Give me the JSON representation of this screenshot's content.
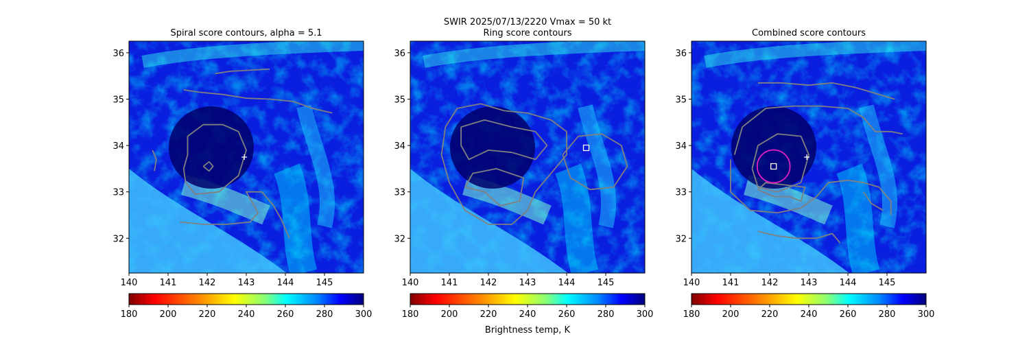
{
  "figure": {
    "suptitle_line1": "SWIR  2025/07/13/2220    Vmax = 50 kt",
    "colorbar_label": "Brightness temp, K",
    "colormap": [
      "#7f0000",
      "#ff0000",
      "#ff8800",
      "#ffff00",
      "#88ff77",
      "#00ffff",
      "#0088ff",
      "#0000ff",
      "#00007f"
    ]
  },
  "chart_data": [
    {
      "type": "heatmap",
      "title": "Spiral score contours, alpha =  5.1",
      "xlim": [
        140,
        146
      ],
      "ylim": [
        31.25,
        36.25
      ],
      "xticks": [
        "140",
        "141",
        "142",
        "143",
        "144",
        "145"
      ],
      "yticks": [
        "32",
        "33",
        "34",
        "35",
        "36"
      ],
      "colorbar": {
        "range": [
          180,
          300
        ],
        "ticks": [
          "180",
          "200",
          "220",
          "240",
          "260",
          "280",
          "300"
        ]
      },
      "markers": [
        {
          "symbol": "plus",
          "color": "#ffffff",
          "x": 142.95,
          "y": 33.75
        }
      ],
      "contours": [
        {
          "color": "#808080",
          "points": [
            [
              142.2,
              35.55
            ],
            [
              142.6,
              35.6
            ],
            [
              143.0,
              35.62
            ],
            [
              143.6,
              35.65
            ]
          ]
        },
        {
          "color": "#808080",
          "points": [
            [
              141.4,
              35.2
            ],
            [
              141.8,
              35.15
            ],
            [
              142.4,
              35.1
            ],
            [
              143.0,
              35.02
            ],
            [
              143.6,
              35.0
            ],
            [
              144.2,
              34.95
            ],
            [
              144.7,
              34.8
            ],
            [
              145.2,
              34.7
            ]
          ]
        },
        {
          "color": "#808080",
          "points": [
            [
              141.5,
              33.8
            ],
            [
              141.5,
              34.2
            ],
            [
              141.9,
              34.45
            ],
            [
              142.4,
              34.45
            ],
            [
              142.8,
              34.3
            ],
            [
              143.0,
              33.9
            ],
            [
              142.8,
              33.35
            ],
            [
              142.3,
              33.0
            ],
            [
              141.7,
              32.95
            ],
            [
              141.45,
              33.2
            ],
            [
              141.4,
              33.5
            ],
            [
              141.5,
              33.8
            ]
          ]
        },
        {
          "color": "#808080",
          "points": [
            [
              141.9,
              33.55
            ],
            [
              142.05,
              33.65
            ],
            [
              142.15,
              33.55
            ],
            [
              142.05,
              33.45
            ],
            [
              141.9,
              33.55
            ]
          ]
        },
        {
          "color": "#808080",
          "points": [
            [
              140.6,
              33.9
            ],
            [
              140.7,
              33.7
            ],
            [
              140.65,
              33.45
            ]
          ]
        },
        {
          "color": "#808080",
          "points": [
            [
              141.3,
              32.35
            ],
            [
              141.9,
              32.3
            ],
            [
              142.5,
              32.3
            ],
            [
              143.1,
              32.35
            ],
            [
              143.3,
              32.55
            ],
            [
              143.0,
              33.0
            ],
            [
              143.4,
              33.0
            ],
            [
              143.7,
              32.7
            ],
            [
              143.9,
              32.4
            ],
            [
              144.1,
              32.0
            ]
          ]
        }
      ]
    },
    {
      "type": "heatmap",
      "title": "Ring score contours",
      "xlim": [
        140,
        146
      ],
      "ylim": [
        31.25,
        36.25
      ],
      "xticks": [
        "140",
        "141",
        "142",
        "143",
        "144",
        "145"
      ],
      "yticks": [
        "32",
        "33",
        "34",
        "35",
        "36"
      ],
      "colorbar": {
        "range": [
          180,
          300
        ],
        "ticks": [
          "180",
          "200",
          "220",
          "240",
          "260",
          "280",
          "300"
        ]
      },
      "markers": [
        {
          "symbol": "square",
          "color": "#ffffff",
          "x": 144.5,
          "y": 33.95
        }
      ],
      "contours": [
        {
          "color": "#808080",
          "points": [
            [
              140.9,
              34.4
            ],
            [
              141.2,
              34.8
            ],
            [
              141.8,
              34.9
            ],
            [
              142.4,
              34.75
            ],
            [
              143.0,
              34.7
            ],
            [
              143.6,
              34.55
            ],
            [
              144.0,
              34.3
            ],
            [
              144.0,
              33.8
            ],
            [
              143.6,
              33.4
            ],
            [
              143.2,
              33.0
            ],
            [
              143.0,
              32.6
            ],
            [
              142.6,
              32.3
            ],
            [
              142.0,
              32.3
            ],
            [
              141.4,
              32.6
            ],
            [
              141.0,
              33.2
            ],
            [
              140.8,
              33.8
            ],
            [
              140.9,
              34.4
            ]
          ]
        },
        {
          "color": "#808080",
          "points": [
            [
              141.3,
              34.4
            ],
            [
              141.9,
              34.55
            ],
            [
              142.6,
              34.4
            ],
            [
              143.2,
              34.3
            ],
            [
              143.5,
              34.0
            ],
            [
              143.2,
              33.7
            ],
            [
              142.6,
              33.85
            ],
            [
              142.0,
              33.9
            ],
            [
              141.5,
              33.7
            ],
            [
              141.3,
              34.0
            ],
            [
              141.3,
              34.4
            ]
          ]
        },
        {
          "color": "#808080",
          "points": [
            [
              143.9,
              33.8
            ],
            [
              144.3,
              34.2
            ],
            [
              144.9,
              34.25
            ],
            [
              145.4,
              34.0
            ],
            [
              145.55,
              33.55
            ],
            [
              145.2,
              33.1
            ],
            [
              144.6,
              33.05
            ],
            [
              144.1,
              33.3
            ],
            [
              143.9,
              33.8
            ]
          ]
        },
        {
          "color": "#808080",
          "points": [
            [
              141.4,
              33.1
            ],
            [
              141.9,
              33.0
            ],
            [
              142.3,
              32.7
            ],
            [
              142.8,
              32.8
            ],
            [
              142.9,
              33.3
            ],
            [
              142.2,
              33.5
            ],
            [
              141.6,
              33.4
            ],
            [
              141.4,
              33.1
            ]
          ]
        }
      ]
    },
    {
      "type": "heatmap",
      "title": "Combined score contours",
      "xlim": [
        140,
        146
      ],
      "ylim": [
        31.25,
        36.25
      ],
      "xticks": [
        "140",
        "141",
        "142",
        "143",
        "144",
        "145"
      ],
      "yticks": [
        "32",
        "33",
        "34",
        "35",
        "36"
      ],
      "colorbar": {
        "range": [
          180,
          300
        ],
        "ticks": [
          "180",
          "200",
          "220",
          "240",
          "260",
          "280",
          "300"
        ]
      },
      "markers": [
        {
          "symbol": "plus",
          "color": "#ffffff",
          "x": 142.95,
          "y": 33.75
        },
        {
          "symbol": "square",
          "color": "#ffffff",
          "x": 142.1,
          "y": 33.55
        },
        {
          "symbol": "ring",
          "color": "#e020c0",
          "x": 142.1,
          "y": 33.55,
          "radius_deg": 0.42
        }
      ],
      "contours": [
        {
          "color": "#808080",
          "points": [
            [
              141.7,
              35.35
            ],
            [
              142.3,
              35.35
            ],
            [
              143.0,
              35.3
            ],
            [
              143.6,
              35.35
            ],
            [
              144.2,
              35.25
            ],
            [
              144.8,
              35.1
            ],
            [
              145.2,
              35.0
            ]
          ]
        },
        {
          "color": "#808080",
          "points": [
            [
              141.1,
              33.8
            ],
            [
              141.3,
              34.4
            ],
            [
              141.9,
              34.8
            ],
            [
              142.6,
              34.85
            ],
            [
              143.3,
              34.85
            ],
            [
              144.0,
              34.8
            ],
            [
              144.4,
              34.6
            ],
            [
              144.7,
              34.3
            ],
            [
              145.1,
              34.3
            ],
            [
              145.4,
              34.25
            ]
          ]
        },
        {
          "color": "#808080",
          "points": [
            [
              141.0,
              33.7
            ],
            [
              141.0,
              33.0
            ],
            [
              141.5,
              32.6
            ],
            [
              142.2,
              32.55
            ],
            [
              142.8,
              32.65
            ],
            [
              143.2,
              32.9
            ],
            [
              143.5,
              33.2
            ],
            [
              144.0,
              33.25
            ],
            [
              144.4,
              33.2
            ],
            [
              144.8,
              33.1
            ],
            [
              145.1,
              32.8
            ],
            [
              145.1,
              32.5
            ]
          ]
        },
        {
          "color": "#808080",
          "points": [
            [
              141.55,
              33.5
            ],
            [
              141.7,
              34.0
            ],
            [
              142.2,
              34.25
            ],
            [
              142.8,
              34.2
            ],
            [
              143.0,
              33.8
            ],
            [
              142.8,
              33.2
            ],
            [
              142.2,
              33.0
            ],
            [
              141.7,
              33.1
            ],
            [
              141.55,
              33.5
            ]
          ]
        },
        {
          "color": "#808080",
          "points": [
            [
              141.7,
              33.05
            ],
            [
              142.1,
              32.9
            ],
            [
              142.5,
              32.9
            ],
            [
              142.8,
              32.8
            ],
            [
              142.9,
              33.1
            ],
            [
              142.4,
              33.15
            ],
            [
              141.9,
              33.2
            ],
            [
              141.7,
              33.05
            ]
          ]
        },
        {
          "color": "#808080",
          "points": [
            [
              141.7,
              32.15
            ],
            [
              142.2,
              32.05
            ],
            [
              142.7,
              32.0
            ],
            [
              143.2,
              32.0
            ],
            [
              143.6,
              32.1
            ],
            [
              143.8,
              31.9
            ]
          ]
        },
        {
          "color": "#808080",
          "points": [
            [
              144.4,
              33.0
            ],
            [
              144.6,
              32.75
            ],
            [
              144.9,
              32.6
            ]
          ]
        }
      ]
    }
  ]
}
